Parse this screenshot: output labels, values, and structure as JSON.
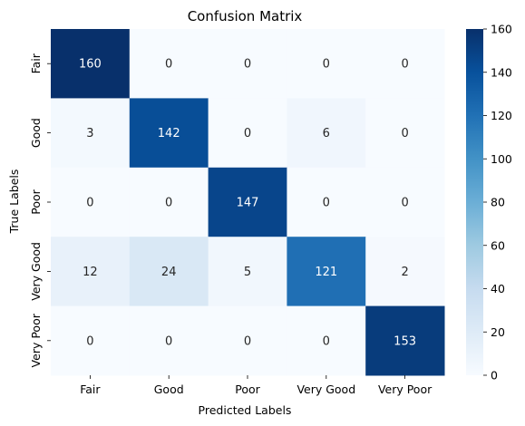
{
  "chart_data": {
    "type": "heatmap",
    "title": "Confusion Matrix",
    "xlabel": "Predicted Labels",
    "ylabel": "True Labels",
    "x_categories": [
      "Fair",
      "Good",
      "Poor",
      "Very Good",
      "Very Poor"
    ],
    "y_categories": [
      "Fair",
      "Good",
      "Poor",
      "Very Good",
      "Very Poor"
    ],
    "values": [
      [
        160,
        0,
        0,
        0,
        0
      ],
      [
        3,
        142,
        0,
        6,
        0
      ],
      [
        0,
        0,
        147,
        0,
        0
      ],
      [
        12,
        24,
        5,
        121,
        2
      ],
      [
        0,
        0,
        0,
        0,
        153
      ]
    ],
    "colorbar": {
      "min": 0,
      "max": 160,
      "ticks": [
        0,
        20,
        40,
        60,
        80,
        100,
        120,
        140,
        160
      ]
    },
    "colormap": "Blues",
    "colors": {
      "low": "#f7fbff",
      "high": "#08306b",
      "text_dark": "#262626",
      "text_light": "#ffffff"
    }
  }
}
